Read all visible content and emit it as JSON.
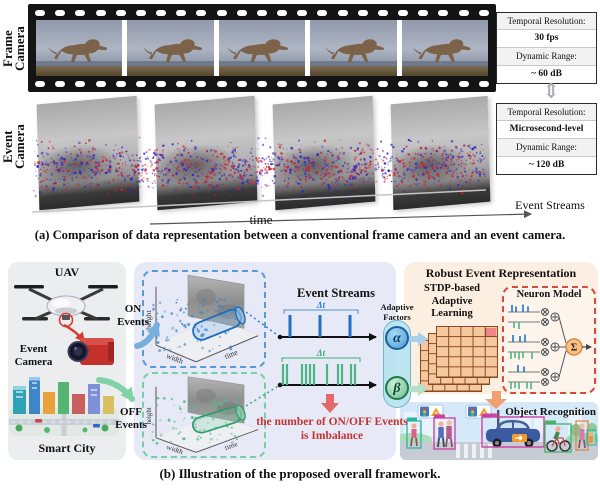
{
  "colors": {
    "on_blue": "#2272c8",
    "off_green": "#4cb485",
    "event_red": "#cc2030",
    "event_blue": "#2a25c8",
    "imbalance_red": "#c43333",
    "gray_box_bg": "#ebedee",
    "middle_box_bg": "#e7eaf6",
    "representation_box_bg": "#fcefe1"
  },
  "icons": {
    "updown_arrow": "⇕"
  },
  "panel_a": {
    "caption": "(a) Comparison of data representation between a conventional frame camera and an event camera.",
    "frame_camera_label": "Frame Camera",
    "event_camera_label": "Event Camera",
    "time_axis_label": "time",
    "event_streams_label": "Event Streams",
    "frame_info": {
      "row1_label": "Temporal Resolution:",
      "row1_value": "30 fps",
      "row2_label": "Dynamic Range:",
      "row2_value": "~ 60 dB"
    },
    "event_info": {
      "row1_label": "Temporal Resolution:",
      "row1_value": "Microsecond-level",
      "row2_label": "Dynamic Range:",
      "row2_value": "~ 120 dB"
    }
  },
  "panel_b": {
    "caption": "(b) Illustration of the proposed overall framework.",
    "uav_label": "UAV",
    "event_camera_label": "Event Camera",
    "smart_city_label": "Smart City",
    "on_events_label": "ON Events",
    "off_events_label": "OFF Events",
    "axis_height": "height",
    "axis_width": "width",
    "axis_time": "time",
    "event_streams_title": "Event Streams",
    "delta_t": "Δt",
    "adaptive_factors_label": "Adaptive Factors",
    "alpha": "α",
    "beta": "β",
    "imbalance_text": "the number of ON/OFF Events is Imbalance",
    "representation_title": "Robust Event Representation",
    "stdp_label": "STDP-based Adaptive Learning",
    "neuron_model_label": "Neuron Model",
    "sigma": "Σ",
    "object_recognition_label": "Object Recognition"
  }
}
